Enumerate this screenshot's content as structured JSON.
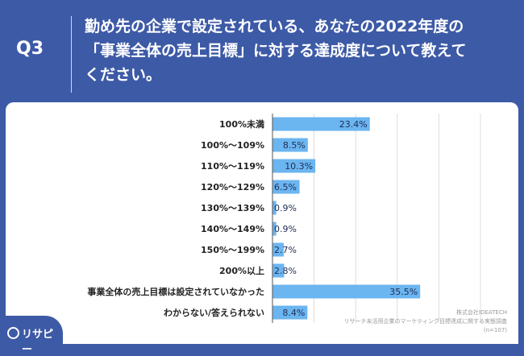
{
  "header": {
    "badge": "Q3",
    "title": "勤め先の企業で設定されている、あなたの2022年度の\n「事業全体の売上目標」に対する達成度について教えて\nください。"
  },
  "chart_data": {
    "type": "bar",
    "orientation": "horizontal",
    "categories": [
      "100%未満",
      "100%〜109%",
      "110%〜119%",
      "120%〜129%",
      "130%〜139%",
      "140%〜149%",
      "150%〜199%",
      "200%以上",
      "事業全体の売上目標は設定されていなかった",
      "わからない/答えられない"
    ],
    "values": [
      23.4,
      8.5,
      10.3,
      6.5,
      0.9,
      0.9,
      2.7,
      2.8,
      35.5,
      8.4
    ],
    "value_labels": [
      "23.4%",
      "8.5%",
      "10.3%",
      "6.5%",
      "0.9%",
      "0.9%",
      "2.7%",
      "2.8%",
      "35.5%",
      "8.4%"
    ],
    "xlim": [
      0,
      50
    ],
    "grid": true,
    "bar_color": "#6bb5f0"
  },
  "footnote": {
    "company": "株式会社IDEATECH",
    "survey": "リサーチ未活用企業のマーケティング目標達成に関する実態調査",
    "n": "(n=107)"
  },
  "logo": {
    "text": "リサピー",
    "icon": "magnifier-icon"
  }
}
